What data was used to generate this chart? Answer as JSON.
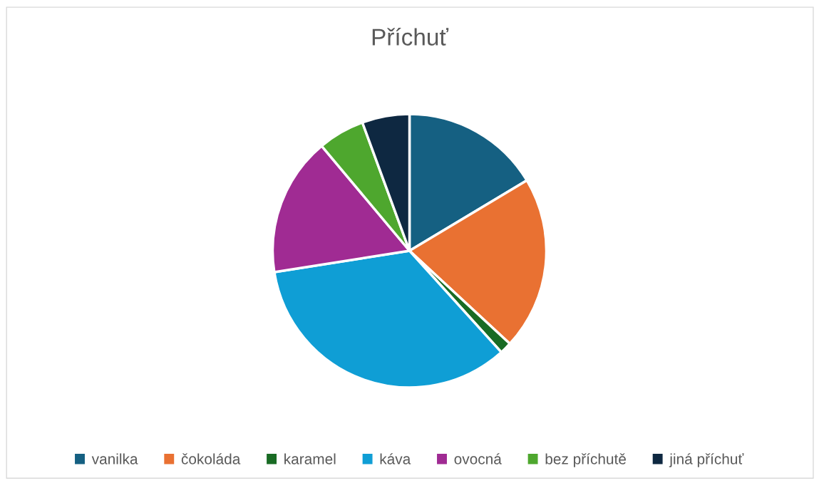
{
  "chart_data": {
    "type": "pie",
    "title": "Příchuť",
    "categories": [
      "vanilka",
      "čokoláda",
      "karamel",
      "káva",
      "ovocná",
      "bez příchutě",
      "jiná příchuť"
    ],
    "values": [
      16.4,
      20.5,
      1.4,
      34.2,
      16.4,
      5.5,
      5.6
    ],
    "colors": [
      "#156082",
      "#e97132",
      "#196b24",
      "#0f9ed5",
      "#a02b93",
      "#4ea72e",
      "#0e2841"
    ],
    "legend": "bottom"
  }
}
